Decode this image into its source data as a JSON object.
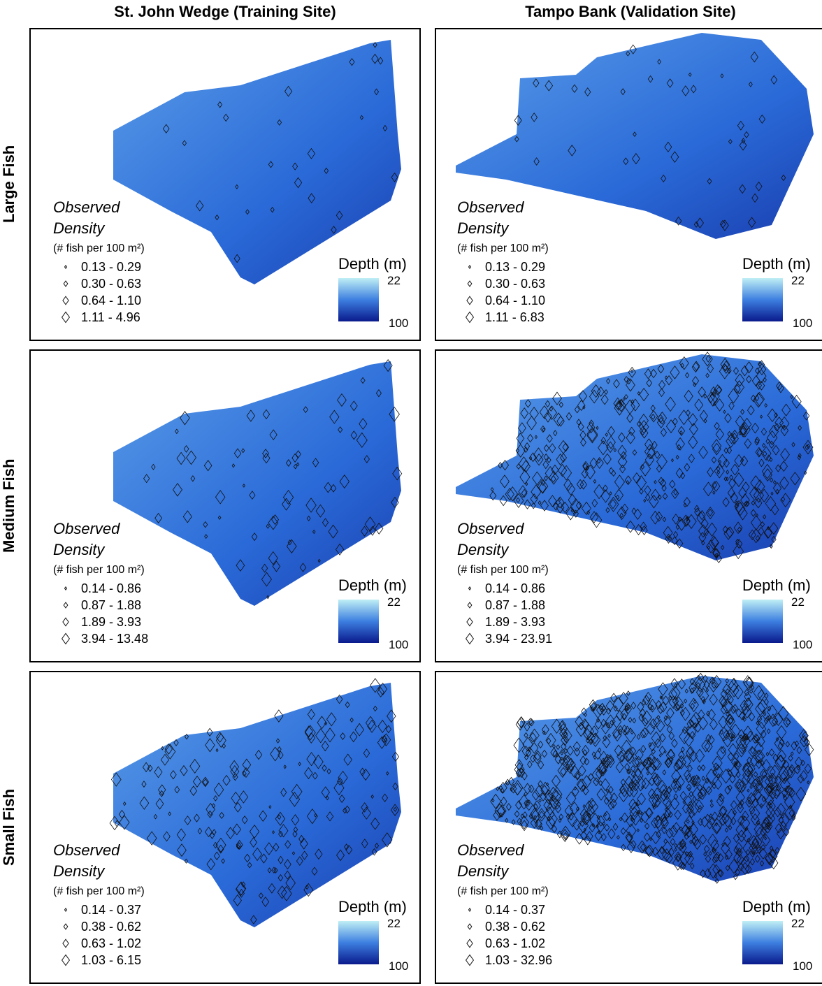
{
  "columns": [
    "St. John Wedge (Training Site)",
    "Tampo Bank (Validation Site)"
  ],
  "rows": [
    "Large Fish",
    "Medium Fish",
    "Small Fish"
  ],
  "panels": [
    [
      {
        "legend": {
          "title_1": "Observed",
          "title_2": "Density",
          "unit": "(# fish per 100 m²)",
          "classes": [
            "0.13 - 0.29",
            "0.30 - 0.63",
            "0.64 - 1.10",
            "1.11 - 4.96"
          ]
        },
        "depth": {
          "title": "Depth (m)",
          "top": 22,
          "bottom": 100
        }
      },
      {
        "legend": {
          "title_1": "Observed",
          "title_2": "Density",
          "unit": "(# fish per 100 m²)",
          "classes": [
            "0.13 - 0.29",
            "0.30 - 0.63",
            "0.64 - 1.10",
            "1.11 - 6.83"
          ]
        },
        "depth": {
          "title": "Depth (m)",
          "top": 22,
          "bottom": 100
        }
      }
    ],
    [
      {
        "legend": {
          "title_1": "Observed",
          "title_2": "Density",
          "unit": "(# fish per 100 m²)",
          "classes": [
            "0.14 - 0.86",
            "0.87 - 1.88",
            "1.89 - 3.93",
            "3.94 - 13.48"
          ]
        },
        "depth": {
          "title": "Depth (m)",
          "top": 22,
          "bottom": 100
        }
      },
      {
        "legend": {
          "title_1": "Observed",
          "title_2": "Density",
          "unit": "(# fish per 100 m²)",
          "classes": [
            "0.14 - 0.86",
            "0.87 - 1.88",
            "1.89 - 3.93",
            "3.94 - 23.91"
          ]
        },
        "depth": {
          "title": "Depth (m)",
          "top": 22,
          "bottom": 100
        }
      }
    ],
    [
      {
        "legend": {
          "title_1": "Observed",
          "title_2": "Density",
          "unit": "(# fish per 100 m²)",
          "classes": [
            "0.14 - 0.37",
            "0.38 - 0.62",
            "0.63 - 1.02",
            "1.03 - 6.15"
          ]
        },
        "depth": {
          "title": "Depth (m)",
          "top": 22,
          "bottom": 100
        }
      },
      {
        "legend": {
          "title_1": "Observed",
          "title_2": "Density",
          "unit": "(# fish per 100 m²)",
          "classes": [
            "0.14 - 0.37",
            "0.38 - 0.62",
            "0.63 - 1.02",
            "1.03 - 32.96"
          ]
        },
        "depth": {
          "title": "Depth (m)",
          "top": 22,
          "bottom": 100
        }
      }
    ]
  ]
}
